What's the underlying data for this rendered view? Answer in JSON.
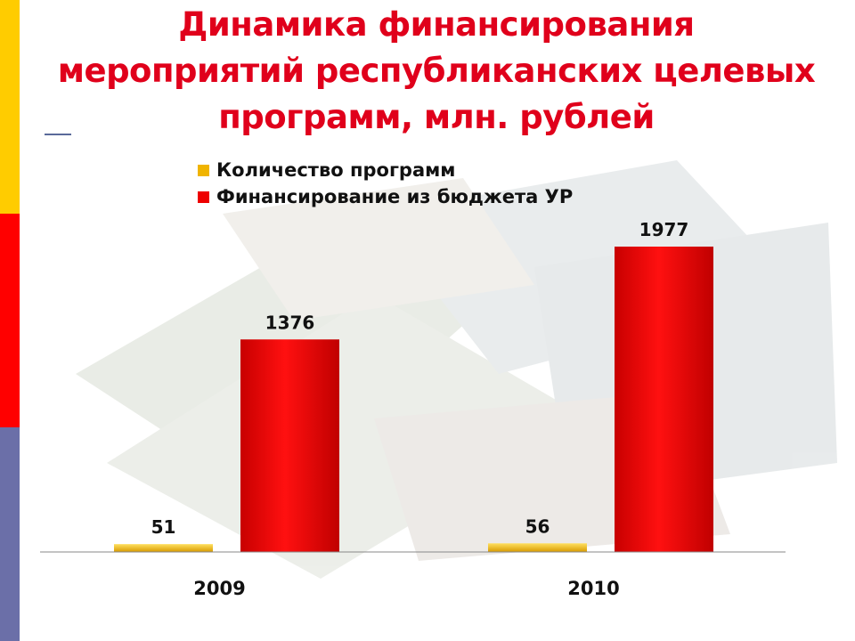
{
  "title_lines": [
    "Динамика финансирования",
    "мероприятий республиканских целевых",
    "программ,  млн. рублей"
  ],
  "colors": {
    "stripe_top": "#ffcc00",
    "stripe_mid": "#ff0000",
    "stripe_bottom": "#6b6fa8",
    "title": "#e0001b",
    "series_count": "#f0b400",
    "series_funding": "#ee0000"
  },
  "chart_data": {
    "type": "bar",
    "title": "Динамика финансирования мероприятий республиканских целевых программ,  млн. рублей",
    "categories": [
      "2009",
      "2010"
    ],
    "series": [
      {
        "name": "Количество программ",
        "values": [
          51,
          56
        ],
        "color": "#f0b400"
      },
      {
        "name": "Финансирование из бюджета УР",
        "values": [
          1376,
          1977
        ],
        "color": "#ee0000"
      }
    ],
    "ylim": [
      0,
      2100
    ],
    "grid": false,
    "legend": "top-left"
  }
}
